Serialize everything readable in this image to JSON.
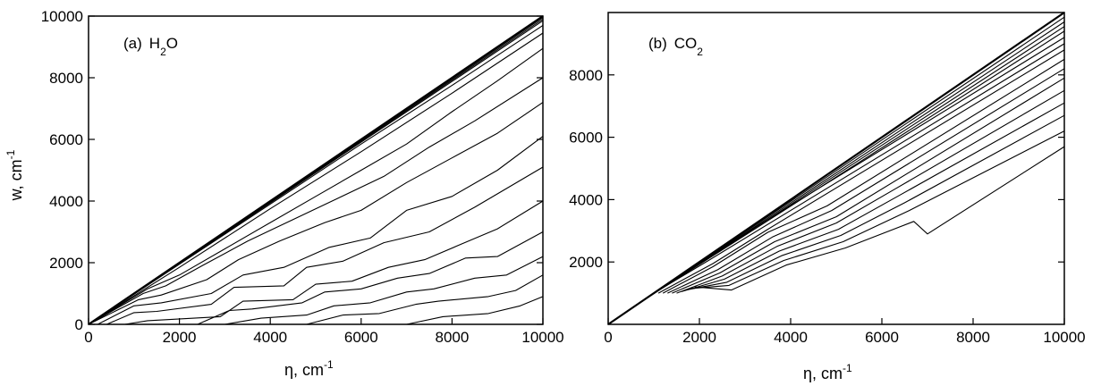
{
  "chart_data": [
    {
      "type": "line",
      "panel_label": "(a)",
      "species": "H",
      "species_subscript": "2",
      "species_suffix": "O",
      "xlabel": "η, cm",
      "xlabel_sup": "-1",
      "ylabel": "w,  cm",
      "ylabel_sup": "-1",
      "xlim": [
        0,
        10000
      ],
      "ylim": [
        0,
        10000
      ],
      "xticks": [
        "0",
        "2000",
        "4000",
        "6000",
        "8000",
        "10000"
      ],
      "yticks": [
        "0",
        "2000",
        "4000",
        "6000",
        "8000",
        "10000"
      ],
      "grid": false,
      "series": [
        {
          "x": [
            0,
            10000
          ],
          "y": [
            0,
            10000
          ]
        },
        {
          "x": [
            0,
            10000
          ],
          "y": [
            0,
            9950
          ]
        },
        {
          "x": [
            0,
            10000
          ],
          "y": [
            0,
            9900
          ]
        },
        {
          "x": [
            0,
            10000
          ],
          "y": [
            0,
            9850
          ]
        },
        {
          "x": [
            0,
            2000,
            4000,
            6000,
            8000,
            10000
          ],
          "y": [
            0,
            1950,
            3900,
            5850,
            7750,
            9700
          ]
        },
        {
          "x": [
            0,
            2000,
            4000,
            6000,
            8000,
            10000
          ],
          "y": [
            0,
            1850,
            3750,
            5600,
            7500,
            9450
          ]
        },
        {
          "x": [
            0,
            1300,
            2000,
            3000,
            4000,
            5000,
            6000,
            7000,
            8000,
            9000,
            10000
          ],
          "y": [
            0,
            1150,
            1600,
            2450,
            3300,
            4150,
            5000,
            5850,
            6900,
            7900,
            8950
          ]
        },
        {
          "x": [
            0,
            1200,
            1700,
            2500,
            3500,
            4500,
            5500,
            6500,
            7500,
            8500,
            10000
          ],
          "y": [
            0,
            1000,
            1250,
            1900,
            2700,
            3400,
            4100,
            4800,
            5750,
            6600,
            8000
          ]
        },
        {
          "x": [
            0,
            1100,
            1600,
            2600,
            3300,
            4200,
            5200,
            6000,
            7000,
            8000,
            9000,
            10000
          ],
          "y": [
            0,
            800,
            950,
            1450,
            2100,
            2700,
            3300,
            3700,
            4600,
            5400,
            6200,
            7200
          ]
        },
        {
          "x": [
            200,
            1000,
            1600,
            2700,
            3400,
            4300,
            5300,
            6200,
            7000,
            8000,
            9000,
            10000
          ],
          "y": [
            0,
            600,
            700,
            1000,
            1600,
            1850,
            2500,
            2800,
            3700,
            4150,
            5000,
            6100
          ]
        },
        {
          "x": [
            400,
            1000,
            1500,
            2700,
            3200,
            4300,
            4800,
            5600,
            6500,
            7500,
            8500,
            10000
          ],
          "y": [
            0,
            380,
            420,
            650,
            1200,
            1250,
            1850,
            2050,
            2650,
            3000,
            3800,
            5100
          ]
        },
        {
          "x": [
            800,
            1300,
            2900,
            3400,
            4500,
            5000,
            5800,
            6600,
            7400,
            8200,
            9000,
            10000
          ],
          "y": [
            0,
            120,
            250,
            750,
            800,
            1300,
            1400,
            1850,
            2100,
            2600,
            3100,
            4000
          ]
        },
        {
          "x": [
            2400,
            3100,
            3600,
            4700,
            5200,
            6000,
            6800,
            7500,
            8300,
            9000,
            10000
          ],
          "y": [
            0,
            450,
            500,
            700,
            1050,
            1150,
            1500,
            1650,
            2150,
            2200,
            3000
          ]
        },
        {
          "x": [
            3000,
            3800,
            4800,
            5400,
            6200,
            7000,
            7600,
            8500,
            9200,
            10000
          ],
          "y": [
            0,
            200,
            300,
            600,
            700,
            1050,
            1150,
            1500,
            1600,
            2200
          ]
        },
        {
          "x": [
            4800,
            5600,
            6400,
            7200,
            7700,
            8800,
            9400,
            10000
          ],
          "y": [
            0,
            300,
            350,
            650,
            750,
            900,
            1100,
            1600
          ]
        },
        {
          "x": [
            7000,
            7800,
            8800,
            9500,
            10000
          ],
          "y": [
            0,
            250,
            350,
            600,
            900
          ]
        }
      ]
    },
    {
      "type": "line",
      "panel_label": "(b)",
      "species": "CO",
      "species_subscript": "2",
      "species_suffix": "",
      "xlabel": "η, cm",
      "xlabel_sup": "-1",
      "ylabel": "",
      "ylabel_sup": "",
      "xlim": [
        0,
        10000
      ],
      "ylim": [
        0,
        10000
      ],
      "xticks": [
        "0",
        "2000",
        "4000",
        "6000",
        "8000",
        "10000"
      ],
      "yticks": [
        "2000",
        "4000",
        "6000",
        "8000"
      ],
      "grid": false,
      "series": [
        {
          "x": [
            0,
            10000
          ],
          "y": [
            0,
            10000
          ]
        },
        {
          "x": [
            500,
            10000
          ],
          "y": [
            500,
            9850
          ]
        },
        {
          "x": [
            600,
            10000
          ],
          "y": [
            600,
            9700
          ]
        },
        {
          "x": [
            700,
            10000
          ],
          "y": [
            700,
            9550
          ]
        },
        {
          "x": [
            800,
            10000
          ],
          "y": [
            800,
            9400
          ]
        },
        {
          "x": [
            900,
            2100,
            10000
          ],
          "y": [
            900,
            2100,
            9200
          ]
        },
        {
          "x": [
            1000,
            2200,
            10000
          ],
          "y": [
            1000,
            2050,
            9000
          ]
        },
        {
          "x": [
            1100,
            2300,
            3500,
            10000
          ],
          "y": [
            1000,
            1950,
            3050,
            8800
          ]
        },
        {
          "x": [
            1200,
            2300,
            3500,
            4800,
            10000
          ],
          "y": [
            1000,
            1850,
            2950,
            3800,
            8500
          ]
        },
        {
          "x": [
            1300,
            2400,
            3600,
            4900,
            10000
          ],
          "y": [
            1000,
            1750,
            2800,
            3650,
            8200
          ]
        },
        {
          "x": [
            1400,
            2450,
            3650,
            5000,
            10000
          ],
          "y": [
            1000,
            1650,
            2650,
            3450,
            7900
          ]
        },
        {
          "x": [
            1500,
            2500,
            3700,
            5000,
            6300,
            10000
          ],
          "y": [
            1000,
            1550,
            2500,
            3250,
            4350,
            7500
          ]
        },
        {
          "x": [
            1600,
            2550,
            3750,
            5050,
            6400,
            10000
          ],
          "y": [
            1050,
            1450,
            2350,
            3050,
            4150,
            7100
          ]
        },
        {
          "x": [
            1700,
            2600,
            3800,
            5100,
            6500,
            10000
          ],
          "y": [
            1100,
            1350,
            2200,
            2850,
            3900,
            6700
          ]
        },
        {
          "x": [
            1800,
            2650,
            3850,
            5150,
            6600,
            10000
          ],
          "y": [
            1150,
            1250,
            2050,
            2650,
            3650,
            6200
          ]
        },
        {
          "x": [
            1900,
            2700,
            3900,
            5200,
            6700,
            7000,
            10000
          ],
          "y": [
            1200,
            1100,
            1900,
            2450,
            3300,
            2900,
            5700
          ]
        }
      ]
    }
  ]
}
